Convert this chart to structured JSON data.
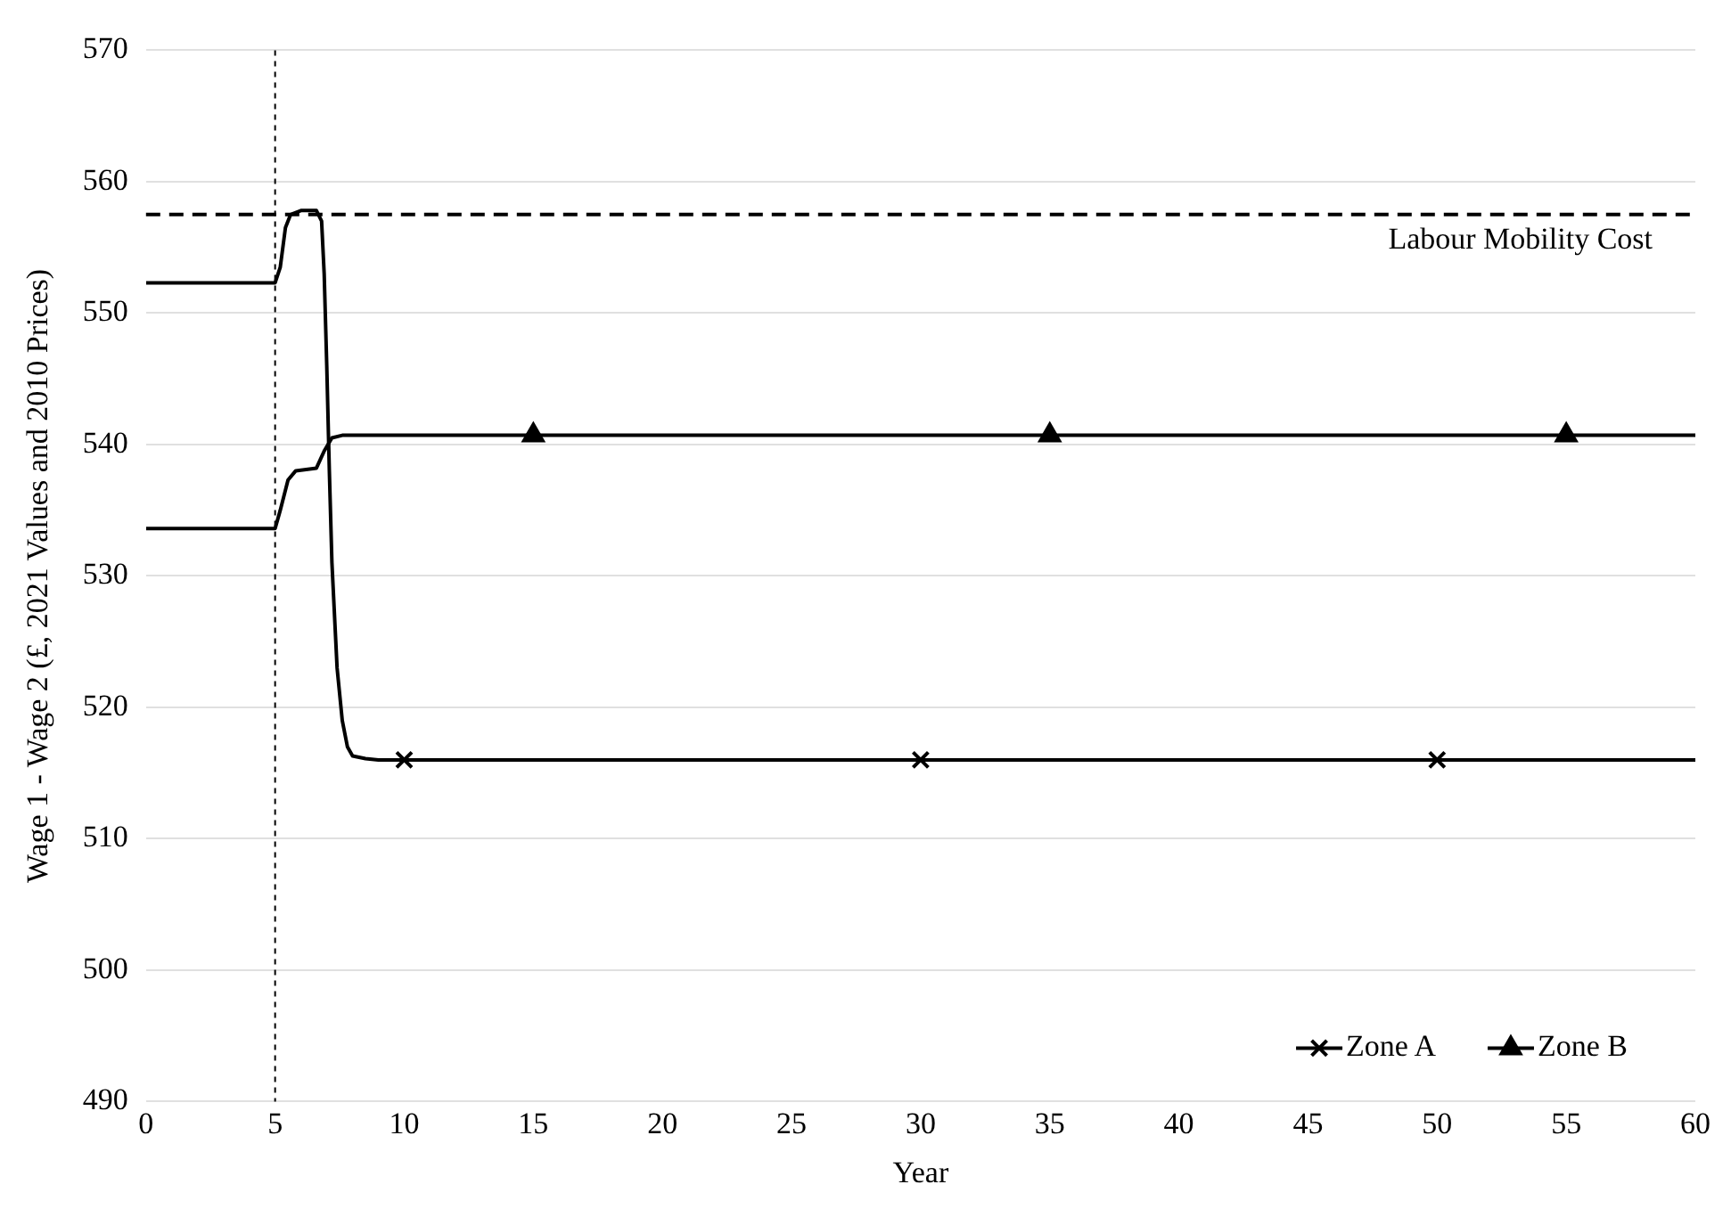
{
  "chart_data": {
    "type": "line",
    "xlabel": "Year",
    "ylabel": "Wage 1 - Wage 2 (£, 2021 Values and 2010 Prices)",
    "xlim": [
      0,
      60
    ],
    "xticks": [
      0,
      5,
      10,
      15,
      20,
      25,
      30,
      35,
      40,
      45,
      50,
      55,
      60
    ],
    "ylim": [
      490,
      570
    ],
    "yticks": [
      490,
      500,
      510,
      520,
      530,
      540,
      550,
      560,
      570
    ],
    "grid": "y",
    "legend": "bottom right",
    "line_style": "solid",
    "series": [
      {
        "type": "line",
        "color": "#000000",
        "marker": "none",
        "x": [
          0,
          5,
          5.2,
          5.4,
          5.6,
          6,
          6.6,
          6.8,
          6.9,
          7.0,
          7.1,
          7.2,
          7.4,
          7.6,
          7.8,
          8,
          8.5,
          9,
          60
        ],
        "values": [
          552.3,
          552.3,
          553.5,
          556.5,
          557.5,
          557.8,
          557.8,
          557,
          553,
          546,
          538,
          531,
          523,
          519,
          517,
          516.3,
          516.1,
          516,
          516
        ]
      },
      {
        "type": "line",
        "color": "#000000",
        "marker": "none",
        "x": [
          0,
          5,
          5.2,
          5.5,
          5.8,
          6.6,
          6.9,
          7.2,
          7.6,
          60
        ],
        "values": [
          533.6,
          533.6,
          535,
          537.3,
          538,
          538.2,
          539.5,
          540.5,
          540.7,
          540.7
        ]
      },
      {
        "type": "scatter",
        "name": "Zone A",
        "color": "#000000",
        "marker": "cross",
        "x": [
          10,
          30,
          50
        ],
        "values": [
          516,
          516,
          516
        ]
      },
      {
        "type": "scatter",
        "name": "Zone B",
        "color": "#000000",
        "marker": "triangle",
        "x": [
          15,
          35,
          55
        ],
        "values": [
          540.7,
          540.7,
          540.7
        ]
      }
    ],
    "ref_lines": [
      {
        "axis": "y",
        "value": 557.5,
        "label": "Labour Mobility Cost",
        "line_style": "dashed",
        "color": "#000000"
      },
      {
        "axis": "x",
        "value": 5,
        "line_style": "dotted",
        "color": "#000000"
      }
    ]
  }
}
